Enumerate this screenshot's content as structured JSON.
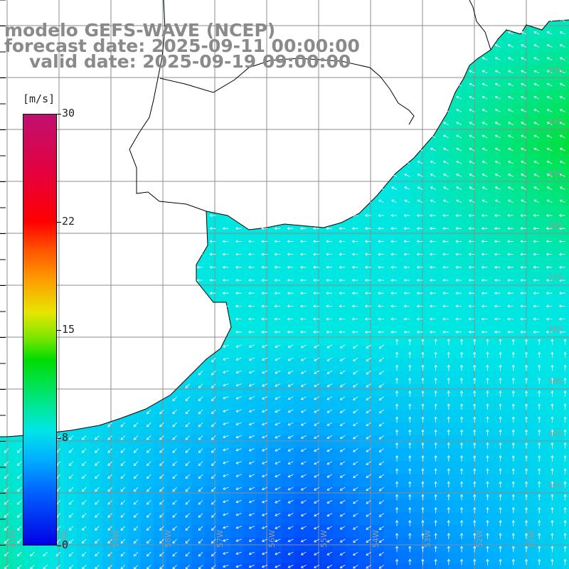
{
  "header": {
    "line1": "modelo GEFS-WAVE (NCEP)",
    "line2": "forecast date: 2025-09-11 00:00:00",
    "line3": "valid date: 2025-09-19 09:00:00"
  },
  "colorbar": {
    "unit": "[m/s]",
    "labels": [
      "30",
      "22",
      "15",
      "8",
      "0"
    ],
    "colors": [
      "#0000e6",
      "#00b0ff",
      "#00e6e6",
      "#00dc00",
      "#e6e600",
      "#ff9900",
      "#ff0000",
      "#c01070"
    ]
  },
  "map": {
    "lon_labels": [
      "61W",
      "60W",
      "59W",
      "58W",
      "57W",
      "56W",
      "55W",
      "54W",
      "53W",
      "52W",
      "51W"
    ],
    "lat_labels": [
      "33S",
      "34S",
      "35S",
      "36S",
      "37S",
      "38S",
      "39S",
      "40S",
      "41S"
    ],
    "land_color": "#ffffff",
    "grid_color": "#8c8c8c",
    "coast_color": "#000000",
    "arrow_color": "#ffffff"
  }
}
